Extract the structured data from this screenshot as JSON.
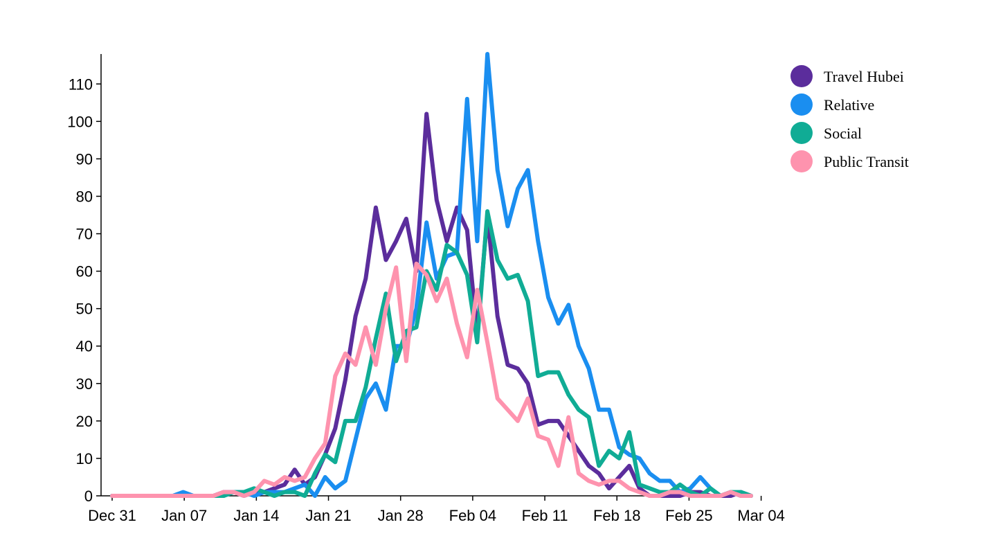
{
  "chart_data": {
    "type": "line",
    "title": "",
    "xlabel": "",
    "ylabel": "",
    "x_start": "2019-12-31",
    "x_end": "2020-03-03",
    "xlim": [
      "2019-12-31",
      "2020-03-04"
    ],
    "ylim": [
      0,
      118
    ],
    "x_ticks": [
      "Dec 31",
      "Jan 07",
      "Jan 14",
      "Jan 21",
      "Jan 28",
      "Feb 04",
      "Feb 11",
      "Feb 18",
      "Feb 25",
      "Mar 04"
    ],
    "y_ticks": [
      0,
      10,
      20,
      30,
      40,
      50,
      60,
      70,
      80,
      90,
      100,
      110
    ],
    "grid": false,
    "legend_position": "top-right",
    "series": [
      {
        "name": "Travel Hubei",
        "color": "#5b2d9c",
        "values": [
          0,
          0,
          0,
          0,
          0,
          0,
          0,
          0,
          0,
          0,
          0,
          1,
          1,
          0,
          1,
          1,
          2,
          3,
          7,
          3,
          5,
          11,
          18,
          31,
          48,
          58,
          77,
          63,
          68,
          74,
          60,
          102,
          79,
          68,
          77,
          71,
          43,
          75,
          48,
          35,
          34,
          30,
          19,
          20,
          20,
          16,
          12,
          8,
          6,
          2,
          5,
          8,
          2,
          0,
          0,
          0,
          0,
          1,
          1,
          0,
          0,
          0,
          1,
          0
        ]
      },
      {
        "name": "Relative",
        "color": "#1a8ef0",
        "values": [
          0,
          0,
          0,
          0,
          0,
          0,
          0,
          1,
          0,
          0,
          0,
          0,
          1,
          1,
          0,
          1,
          1,
          1,
          2,
          3,
          0,
          5,
          2,
          4,
          15,
          26,
          30,
          23,
          40,
          40,
          50,
          73,
          58,
          64,
          65,
          106,
          68,
          118,
          87,
          72,
          82,
          87,
          68,
          53,
          46,
          51,
          40,
          34,
          23,
          23,
          13,
          11,
          10,
          6,
          4,
          4,
          1,
          2,
          5,
          2,
          0,
          1,
          0,
          0
        ]
      },
      {
        "name": "Social",
        "color": "#10ac95",
        "values": [
          0,
          0,
          0,
          0,
          0,
          0,
          0,
          0,
          0,
          0,
          0,
          0,
          1,
          1,
          2,
          1,
          0,
          1,
          1,
          0,
          6,
          11,
          9,
          20,
          20,
          29,
          42,
          54,
          36,
          44,
          45,
          60,
          55,
          67,
          65,
          59,
          41,
          76,
          63,
          58,
          59,
          52,
          32,
          33,
          33,
          27,
          23,
          21,
          8,
          12,
          10,
          17,
          3,
          2,
          1,
          1,
          3,
          1,
          0,
          2,
          0,
          1,
          1,
          0
        ]
      },
      {
        "name": "Public Transit",
        "color": "#fe93ae",
        "values": [
          0,
          0,
          0,
          0,
          0,
          0,
          0,
          0,
          0,
          0,
          0,
          1,
          1,
          0,
          1,
          4,
          3,
          5,
          4,
          5,
          10,
          14,
          32,
          38,
          35,
          45,
          35,
          50,
          61,
          36,
          62,
          59,
          52,
          58,
          46,
          37,
          55,
          41,
          26,
          23,
          20,
          26,
          16,
          15,
          8,
          21,
          6,
          4,
          3,
          4,
          4,
          2,
          1,
          0,
          0,
          1,
          1,
          0,
          0,
          0,
          0,
          1,
          0,
          0
        ]
      }
    ]
  }
}
